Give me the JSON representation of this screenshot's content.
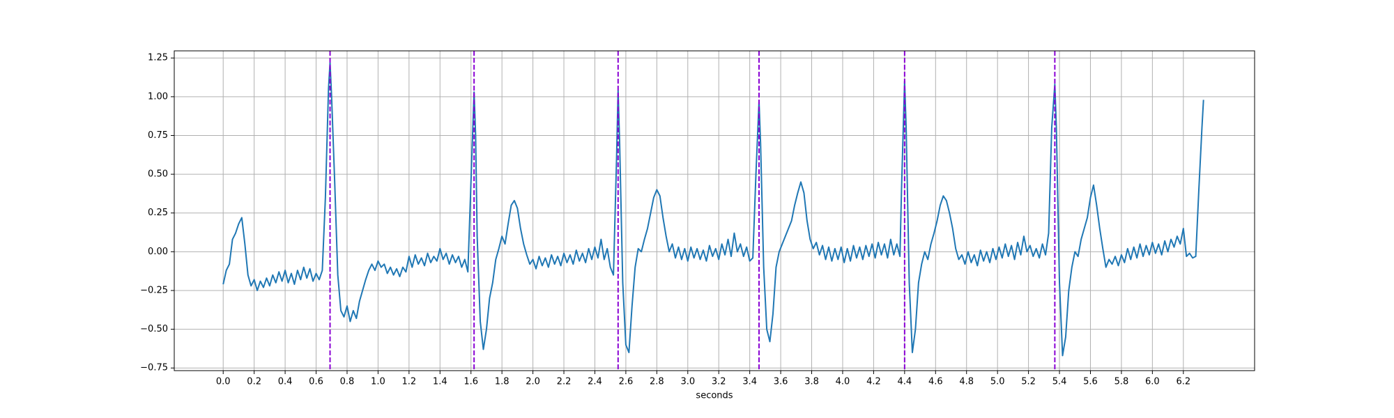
{
  "chart_data": {
    "type": "line",
    "x_label": "seconds",
    "xlim": [
      -0.316,
      6.66
    ],
    "ylim": [
      -0.767,
      1.296
    ],
    "grid": true,
    "xticks": [
      {
        "value": 0,
        "label": "0.0"
      },
      0.2,
      0.4,
      0.6,
      0.8,
      {
        "value": 1,
        "label": "1.0"
      },
      1.2,
      1.4,
      1.6,
      1.8,
      {
        "value": 2,
        "label": "2.0"
      },
      2.2,
      2.4,
      2.6,
      2.8,
      {
        "value": 3,
        "label": "3.0"
      },
      3.2,
      3.4,
      3.6,
      3.8,
      {
        "value": 4,
        "label": "4.0"
      },
      4.2,
      4.4,
      4.6,
      4.8,
      {
        "value": 5,
        "label": "5.0"
      },
      5.2,
      5.4,
      5.6,
      5.8,
      {
        "value": 6,
        "label": "6.0"
      },
      6.2
    ],
    "yticks": [
      {
        "value": -0.75,
        "label": "−0.75"
      },
      {
        "value": -0.5,
        "label": "−0.50"
      },
      {
        "value": -0.25,
        "label": "−0.25"
      },
      {
        "value": 0,
        "label": "0.00"
      },
      0.25,
      {
        "value": 0.5,
        "label": "0.50"
      },
      0.75,
      {
        "value": 1,
        "label": "1.00"
      },
      1.25
    ],
    "vlines": [
      0.69,
      1.62,
      2.55,
      3.46,
      4.4,
      5.37
    ],
    "vline_color": "#8a00d4",
    "x": [
      0.0,
      0.02,
      0.04,
      0.06,
      0.08,
      0.1,
      0.12,
      0.14,
      0.16,
      0.18,
      0.2,
      0.22,
      0.24,
      0.26,
      0.28,
      0.3,
      0.32,
      0.34,
      0.36,
      0.38,
      0.4,
      0.42,
      0.44,
      0.46,
      0.48,
      0.5,
      0.52,
      0.54,
      0.56,
      0.58,
      0.6,
      0.62,
      0.64,
      0.66,
      0.68,
      0.69,
      0.7,
      0.72,
      0.74,
      0.76,
      0.78,
      0.8,
      0.82,
      0.84,
      0.86,
      0.88,
      0.9,
      0.92,
      0.94,
      0.96,
      0.98,
      1.0,
      1.02,
      1.04,
      1.06,
      1.08,
      1.1,
      1.12,
      1.14,
      1.16,
      1.18,
      1.2,
      1.22,
      1.24,
      1.26,
      1.28,
      1.3,
      1.32,
      1.34,
      1.36,
      1.38,
      1.4,
      1.42,
      1.44,
      1.46,
      1.48,
      1.5,
      1.52,
      1.54,
      1.56,
      1.58,
      1.6,
      1.62,
      1.63,
      1.64,
      1.66,
      1.68,
      1.7,
      1.72,
      1.74,
      1.76,
      1.78,
      1.8,
      1.82,
      1.84,
      1.86,
      1.88,
      1.9,
      1.92,
      1.94,
      1.96,
      1.98,
      2.0,
      2.02,
      2.04,
      2.06,
      2.08,
      2.1,
      2.12,
      2.14,
      2.16,
      2.18,
      2.2,
      2.22,
      2.24,
      2.26,
      2.28,
      2.3,
      2.32,
      2.34,
      2.36,
      2.38,
      2.4,
      2.42,
      2.44,
      2.46,
      2.48,
      2.5,
      2.52,
      2.54,
      2.55,
      2.56,
      2.58,
      2.6,
      2.62,
      2.64,
      2.66,
      2.68,
      2.7,
      2.72,
      2.74,
      2.76,
      2.78,
      2.8,
      2.82,
      2.84,
      2.86,
      2.88,
      2.9,
      2.92,
      2.94,
      2.96,
      2.98,
      3.0,
      3.02,
      3.04,
      3.06,
      3.08,
      3.1,
      3.12,
      3.14,
      3.16,
      3.18,
      3.2,
      3.22,
      3.24,
      3.26,
      3.28,
      3.3,
      3.32,
      3.34,
      3.36,
      3.38,
      3.4,
      3.42,
      3.44,
      3.46,
      3.47,
      3.49,
      3.51,
      3.53,
      3.55,
      3.57,
      3.59,
      3.61,
      3.63,
      3.65,
      3.67,
      3.69,
      3.71,
      3.73,
      3.75,
      3.77,
      3.79,
      3.81,
      3.83,
      3.85,
      3.87,
      3.89,
      3.91,
      3.93,
      3.95,
      3.97,
      3.99,
      4.01,
      4.03,
      4.05,
      4.07,
      4.09,
      4.11,
      4.13,
      4.15,
      4.17,
      4.19,
      4.21,
      4.23,
      4.25,
      4.27,
      4.29,
      4.31,
      4.33,
      4.35,
      4.37,
      4.38,
      4.4,
      4.41,
      4.43,
      4.45,
      4.47,
      4.49,
      4.51,
      4.53,
      4.55,
      4.57,
      4.59,
      4.61,
      4.63,
      4.65,
      4.67,
      4.69,
      4.71,
      4.73,
      4.75,
      4.77,
      4.79,
      4.81,
      4.83,
      4.85,
      4.87,
      4.89,
      4.91,
      4.93,
      4.95,
      4.97,
      4.99,
      5.01,
      5.03,
      5.05,
      5.07,
      5.09,
      5.11,
      5.13,
      5.15,
      5.17,
      5.19,
      5.21,
      5.23,
      5.25,
      5.27,
      5.29,
      5.31,
      5.33,
      5.35,
      5.37,
      5.38,
      5.4,
      5.42,
      5.44,
      5.46,
      5.48,
      5.5,
      5.52,
      5.54,
      5.56,
      5.58,
      5.6,
      5.62,
      5.64,
      5.66,
      5.68,
      5.7,
      5.72,
      5.74,
      5.76,
      5.78,
      5.8,
      5.82,
      5.84,
      5.86,
      5.88,
      5.9,
      5.92,
      5.94,
      5.96,
      5.98,
      6.0,
      6.02,
      6.04,
      6.06,
      6.08,
      6.1,
      6.12,
      6.14,
      6.16,
      6.18,
      6.2,
      6.22,
      6.24,
      6.26,
      6.28,
      6.3,
      6.32,
      6.33
    ],
    "series": [
      {
        "color": "#1f77b4",
        "values": [
          -0.21,
          -0.12,
          -0.08,
          0.08,
          0.12,
          0.18,
          0.22,
          0.05,
          -0.15,
          -0.22,
          -0.18,
          -0.25,
          -0.19,
          -0.23,
          -0.17,
          -0.22,
          -0.15,
          -0.2,
          -0.13,
          -0.19,
          -0.12,
          -0.2,
          -0.14,
          -0.21,
          -0.12,
          -0.18,
          -0.1,
          -0.17,
          -0.11,
          -0.19,
          -0.14,
          -0.18,
          -0.12,
          0.35,
          1.05,
          1.22,
          1.0,
          0.45,
          -0.15,
          -0.38,
          -0.42,
          -0.35,
          -0.45,
          -0.38,
          -0.43,
          -0.32,
          -0.25,
          -0.18,
          -0.12,
          -0.08,
          -0.12,
          -0.06,
          -0.1,
          -0.08,
          -0.14,
          -0.1,
          -0.15,
          -0.11,
          -0.16,
          -0.1,
          -0.13,
          -0.03,
          -0.1,
          -0.02,
          -0.08,
          -0.04,
          -0.09,
          -0.01,
          -0.07,
          -0.03,
          -0.06,
          0.02,
          -0.05,
          -0.01,
          -0.08,
          -0.02,
          -0.07,
          -0.03,
          -0.1,
          -0.05,
          -0.13,
          0.45,
          1.03,
          0.75,
          0.1,
          -0.45,
          -0.63,
          -0.5,
          -0.3,
          -0.2,
          -0.05,
          0.02,
          0.1,
          0.05,
          0.18,
          0.3,
          0.33,
          0.28,
          0.15,
          0.05,
          -0.02,
          -0.08,
          -0.05,
          -0.11,
          -0.03,
          -0.09,
          -0.04,
          -0.1,
          -0.02,
          -0.08,
          -0.03,
          -0.09,
          -0.01,
          -0.07,
          -0.02,
          -0.08,
          0.01,
          -0.06,
          -0.01,
          -0.07,
          0.02,
          -0.05,
          0.03,
          -0.04,
          0.08,
          -0.05,
          0.02,
          -0.1,
          -0.15,
          0.6,
          1.04,
          0.7,
          -0.2,
          -0.6,
          -0.65,
          -0.35,
          -0.1,
          0.02,
          0.0,
          0.08,
          0.15,
          0.25,
          0.35,
          0.4,
          0.36,
          0.22,
          0.1,
          0.0,
          0.05,
          -0.04,
          0.03,
          -0.05,
          0.02,
          -0.06,
          0.03,
          -0.04,
          0.02,
          -0.05,
          0.01,
          -0.06,
          0.04,
          -0.03,
          0.02,
          -0.05,
          0.05,
          -0.02,
          0.08,
          -0.03,
          0.12,
          0.0,
          0.05,
          -0.03,
          0.03,
          -0.06,
          -0.04,
          0.5,
          0.97,
          0.7,
          -0.1,
          -0.5,
          -0.58,
          -0.4,
          -0.1,
          0.0,
          0.05,
          0.1,
          0.15,
          0.2,
          0.3,
          0.38,
          0.45,
          0.38,
          0.2,
          0.08,
          0.02,
          0.06,
          -0.02,
          0.04,
          -0.05,
          0.03,
          -0.06,
          0.02,
          -0.05,
          0.03,
          -0.07,
          0.02,
          -0.06,
          0.04,
          -0.04,
          0.03,
          -0.05,
          0.04,
          -0.03,
          0.05,
          -0.04,
          0.06,
          -0.02,
          0.05,
          -0.04,
          0.08,
          -0.02,
          0.05,
          -0.03,
          0.4,
          1.1,
          0.8,
          -0.2,
          -0.65,
          -0.5,
          -0.2,
          -0.08,
          0.0,
          -0.05,
          0.05,
          0.12,
          0.2,
          0.3,
          0.36,
          0.33,
          0.25,
          0.15,
          0.02,
          -0.05,
          -0.02,
          -0.08,
          0.0,
          -0.07,
          -0.02,
          -0.09,
          0.01,
          -0.06,
          0.0,
          -0.07,
          0.02,
          -0.05,
          0.03,
          -0.04,
          0.05,
          -0.03,
          0.04,
          -0.05,
          0.06,
          -0.02,
          0.1,
          0.0,
          0.04,
          -0.03,
          0.02,
          -0.04,
          0.05,
          -0.02,
          0.12,
          0.8,
          1.08,
          0.8,
          -0.2,
          -0.67,
          -0.55,
          -0.25,
          -0.1,
          0.0,
          -0.03,
          0.08,
          0.15,
          0.22,
          0.35,
          0.43,
          0.3,
          0.15,
          0.02,
          -0.1,
          -0.05,
          -0.08,
          -0.03,
          -0.09,
          -0.02,
          -0.07,
          0.02,
          -0.05,
          0.03,
          -0.04,
          0.05,
          -0.03,
          0.04,
          -0.02,
          0.06,
          -0.01,
          0.05,
          -0.02,
          0.07,
          0.0,
          0.08,
          0.03,
          0.1,
          0.05,
          0.15,
          -0.03,
          -0.01,
          -0.04,
          -0.03,
          0.4,
          0.8,
          0.98
        ]
      }
    ]
  }
}
